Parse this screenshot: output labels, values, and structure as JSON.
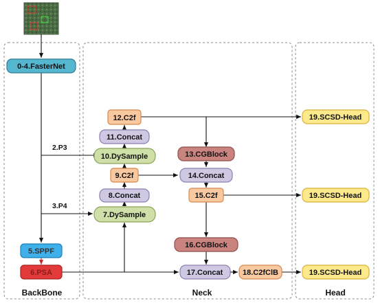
{
  "sections": {
    "backbone": "BackBone",
    "neck": "Neck",
    "head": "Head"
  },
  "nodes": {
    "fasternet": "0-4.FasterNet",
    "sppf": "5.SPPF",
    "psa": "6.PSA",
    "dysample7": "7.DySample",
    "concat8": "8.Concat",
    "c2f9": "9.C2f",
    "dysample10": "10.DySample",
    "concat11": "11.Concat",
    "c2f12": "12.C2f",
    "cgblock13": "13.CGBlock",
    "concat14": "14.Concat",
    "c2f15": "15.C2f",
    "cgblock16": "16.CGBlock",
    "concat17": "17.Concat",
    "c2fclb18": "18.C2fClB",
    "head_top": "19.SCSD-Head",
    "head_mid": "19.SCSD-Head",
    "head_bottom": "19.SCSD-Head"
  },
  "path_labels": {
    "p3": "2.P3",
    "p4": "3.P4"
  },
  "colors": {
    "teal": "#55b6cf",
    "sppf": "#3fb0ea",
    "psa": "#e23a3a",
    "green": "#cfdfa8",
    "lavender": "#cfc8e2",
    "orange": "#f8c8a0",
    "rose": "#c98480",
    "yellow": "#fce98c",
    "line": "#111111",
    "dash": "#888888"
  },
  "input_icon": "field-photo-thumbnail"
}
